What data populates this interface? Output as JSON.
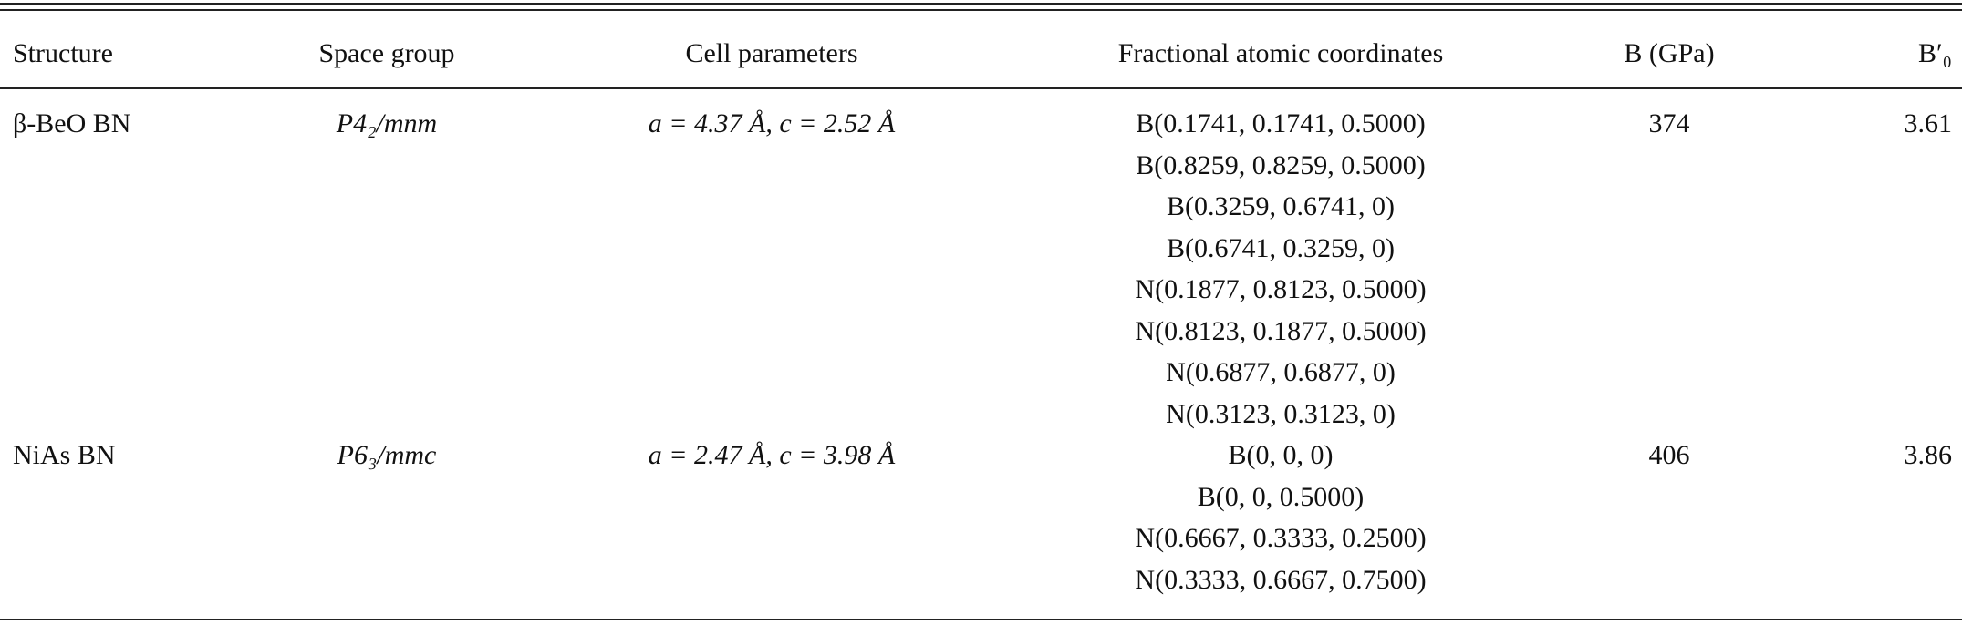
{
  "table": {
    "columns": [
      "Structure",
      "Space group",
      "Cell parameters",
      "Fractional atomic coordinates",
      "B (GPa)",
      "B′₀"
    ],
    "rows": [
      {
        "structure": "β-BeO BN",
        "space_group": "P4₂/mnm",
        "cell": "a = 4.37 Å, c = 2.52 Å",
        "coordinates": [
          "B(0.1741, 0.1741, 0.5000)",
          "B(0.8259, 0.8259, 0.5000)",
          "B(0.3259, 0.6741, 0)",
          "B(0.6741, 0.3259, 0)",
          "N(0.1877, 0.8123, 0.5000)",
          "N(0.8123, 0.1877, 0.5000)",
          "N(0.6877, 0.6877, 0)",
          "N(0.3123, 0.3123, 0)"
        ],
        "bulk_modulus": 374,
        "b_prime": 3.61
      },
      {
        "structure": "NiAs BN",
        "space_group": "P6₃/mmc",
        "cell": "a = 2.47 Å, c = 3.98 Å",
        "coordinates": [
          "B(0, 0, 0)",
          "B(0, 0, 0.5000)",
          "N(0.6667, 0.3333, 0.2500)",
          "N(0.3333, 0.6667, 0.7500)"
        ],
        "bulk_modulus": 406,
        "b_prime": 3.86
      }
    ]
  }
}
